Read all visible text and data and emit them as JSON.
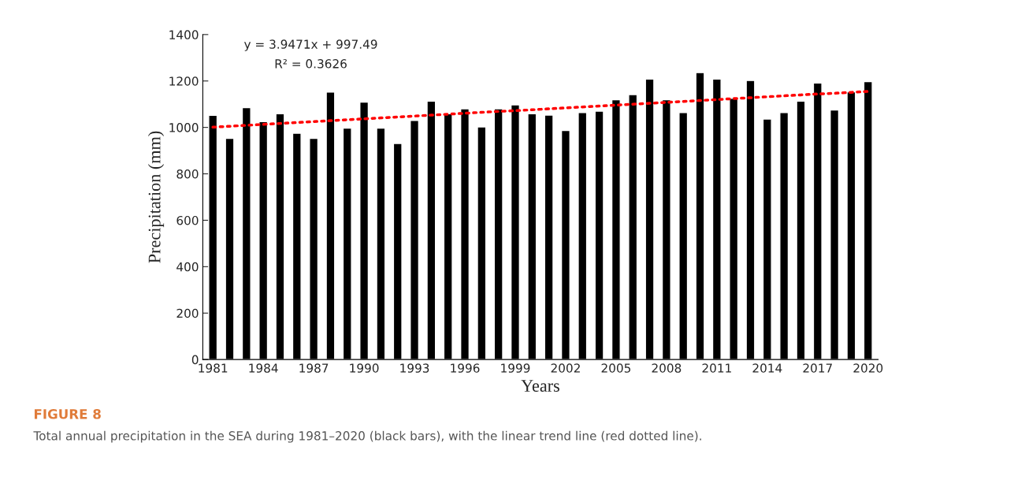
{
  "chart_data": {
    "type": "bar",
    "xlabel": "Years",
    "ylabel": "Precipitation (mm)",
    "categories": [
      "1981",
      null,
      null,
      "1984",
      null,
      null,
      "1987",
      null,
      null,
      "1990",
      null,
      null,
      "1993",
      null,
      null,
      "1996",
      null,
      null,
      "1999",
      null,
      null,
      "2002",
      null,
      null,
      "2005",
      null,
      null,
      "2008",
      null,
      null,
      "2011",
      null,
      null,
      "2014",
      null,
      null,
      "2017",
      null,
      null,
      "2020"
    ],
    "series": [
      {
        "color": "#000000",
        "values": [
          1052,
          953,
          1085,
          1025,
          1059,
          975,
          953,
          1152,
          997,
          1109,
          997,
          931,
          1030,
          1113,
          1059,
          1080,
          1002,
          1080,
          1097,
          1059,
          1053,
          987,
          1064,
          1070,
          1119,
          1141,
          1208,
          1119,
          1064,
          1236,
          1208,
          1125,
          1202,
          1036,
          1064,
          1113,
          1191,
          1075,
          1153,
          1197
        ]
      },
      {
        "type": "line",
        "color": "#ff0000",
        "line_style": "dotted",
        "values": [
          1001,
          1005,
          1009,
          1013,
          1017,
          1021,
          1025,
          1029,
          1033,
          1037,
          1041,
          1045,
          1049,
          1053,
          1057,
          1061,
          1065,
          1069,
          1072,
          1076,
          1080,
          1084,
          1088,
          1092,
          1096,
          1100,
          1104,
          1108,
          1112,
          1116,
          1120,
          1124,
          1128,
          1132,
          1136,
          1140,
          1144,
          1147,
          1151,
          1155
        ]
      }
    ],
    "ylim": [
      0,
      1400
    ],
    "yticks": [
      0,
      200,
      400,
      600,
      800,
      1000,
      1200,
      1400
    ],
    "grid": false,
    "legend": false,
    "annotations": [
      "y = 3.9471x + 997.49",
      "R² = 0.3626",
      "FIGURE 8",
      "Total annual precipitation in the SEA during 1981–2020 (black bars), with the linear trend line (red dotted line)."
    ]
  }
}
